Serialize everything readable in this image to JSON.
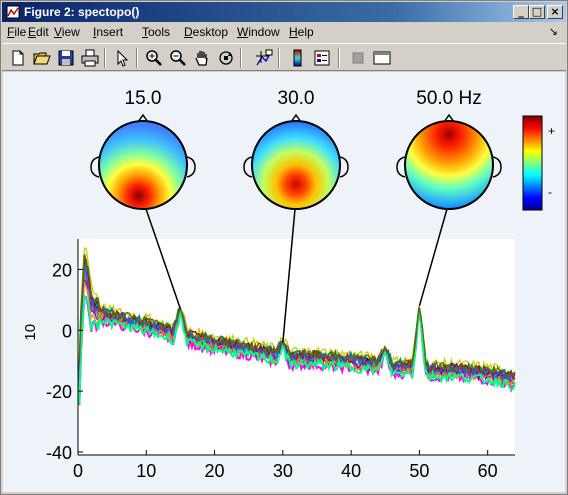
{
  "window": {
    "title": "Figure 2: spectopo()"
  },
  "title_buttons": {
    "minimize": "_",
    "maximize": "□",
    "close": "×"
  },
  "menu": [
    {
      "label": "File",
      "u": "F",
      "rest": "ile"
    },
    {
      "label": "Edit",
      "u": "E",
      "rest": "dit"
    },
    {
      "label": "View",
      "u": "V",
      "rest": "iew"
    },
    {
      "label": "Insert",
      "u": "I",
      "rest": "nsert"
    },
    {
      "label": "Tools",
      "u": "T",
      "rest": "ools"
    },
    {
      "label": "Desktop",
      "u": "D",
      "rest": "esktop"
    },
    {
      "label": "Window",
      "u": "W",
      "rest": "indow"
    },
    {
      "label": "Help",
      "u": "H",
      "rest": "elp"
    }
  ],
  "toolbar_icons": [
    "new-file-icon",
    "open-folder-icon",
    "save-icon",
    "print-icon",
    "pointer-arrow-icon",
    "zoom-in-icon",
    "zoom-out-icon",
    "pan-hand-icon",
    "rotate-3d-icon",
    "data-cursor-icon",
    "colorbar-icon",
    "legend-icon",
    "plot-browser-icon",
    "property-editor-icon"
  ],
  "topoplots": [
    {
      "label": "15.0",
      "freq": 15
    },
    {
      "label": "30.0",
      "freq": 30
    },
    {
      "label": "50.0 Hz",
      "freq": 50
    }
  ],
  "colorbar": {
    "plus": "+",
    "minus": "-"
  },
  "chart_data": {
    "type": "line",
    "xlabel": "",
    "ylabel": "10",
    "xlim": [
      0,
      64
    ],
    "ylim": [
      -41,
      30
    ],
    "xticks": [
      0,
      10,
      20,
      30,
      40,
      50,
      60
    ],
    "yticks": [
      20,
      0,
      -20,
      -40
    ],
    "series_colors": [
      "#0000cc",
      "#ff0000",
      "#00aa00",
      "#ff00ff",
      "#00cccc",
      "#cccc00",
      "#888888",
      "#8800aa",
      "#ff8800",
      "#008888",
      "#aa0000",
      "#4444ff",
      "#00ff88",
      "#666600"
    ],
    "marked_frequencies": [
      15,
      30,
      50
    ],
    "description_envelope": {
      "x": [
        0,
        0.5,
        1,
        1.5,
        2,
        4,
        8,
        10,
        14,
        15,
        16,
        20,
        25,
        29,
        30,
        31,
        35,
        40,
        44,
        45,
        46,
        49,
        50,
        51,
        55,
        60,
        64
      ],
      "y": [
        -30,
        5,
        22,
        15,
        8,
        5,
        3,
        2,
        -1,
        7,
        -2,
        -4,
        -6,
        -8,
        -4,
        -9,
        -9,
        -10,
        -11,
        -6,
        -12,
        -12,
        8,
        -13,
        -13,
        -14,
        -16
      ]
    }
  }
}
